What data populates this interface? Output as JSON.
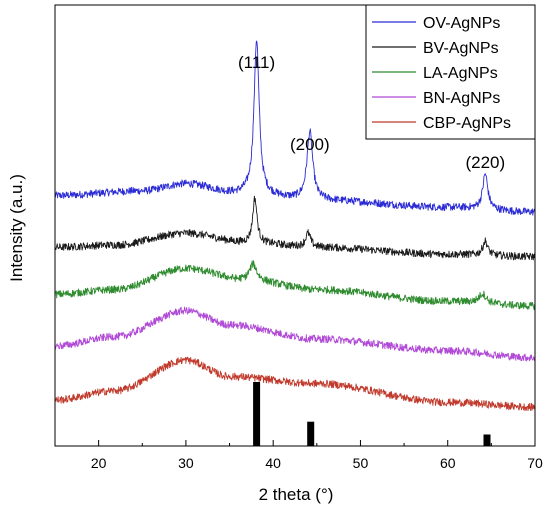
{
  "chart_data": {
    "type": "line",
    "xlabel": "2 theta (°)",
    "ylabel": "Intensity (a.u.)",
    "xlim": [
      15,
      70
    ],
    "xticks": [
      "20",
      "30",
      "40",
      "50",
      "60",
      "70"
    ],
    "y_ticks_shown": false,
    "grid": false,
    "legend_position": "top-right",
    "series": [
      {
        "name": "OV-AgNPs",
        "color": "#2b2bd6",
        "offset": 4.0,
        "baseline": [
          [
            15,
            0.35
          ],
          [
            25,
            0.45
          ],
          [
            30,
            0.6
          ],
          [
            36,
            0.4
          ],
          [
            45,
            0.25
          ],
          [
            60,
            0.1
          ],
          [
            70,
            0.0
          ]
        ],
        "peaks": [
          [
            38.1,
            3.3,
            0.35
          ],
          [
            44.2,
            1.45,
            0.4
          ],
          [
            64.3,
            0.75,
            0.35
          ]
        ]
      },
      {
        "name": "BV-AgNPs",
        "color": "#1a1a1a",
        "offset": 3.0,
        "baseline": [
          [
            15,
            0.25
          ],
          [
            22,
            0.3
          ],
          [
            30,
            0.55
          ],
          [
            37,
            0.35
          ],
          [
            45,
            0.25
          ],
          [
            60,
            0.1
          ],
          [
            70,
            0.05
          ]
        ],
        "peaks": [
          [
            37.9,
            0.95,
            0.3
          ],
          [
            44.0,
            0.3,
            0.35
          ],
          [
            64.3,
            0.3,
            0.35
          ]
        ]
      },
      {
        "name": "LA-AgNPs",
        "color": "#2e8b2e",
        "offset": 2.0,
        "baseline": [
          [
            15,
            0.25
          ],
          [
            22,
            0.35
          ],
          [
            30,
            0.8
          ],
          [
            37,
            0.55
          ],
          [
            45,
            0.35
          ],
          [
            60,
            0.1
          ],
          [
            70,
            0.0
          ]
        ],
        "peaks": [
          [
            37.7,
            0.35,
            0.5
          ],
          [
            64.0,
            0.2,
            0.5
          ]
        ]
      },
      {
        "name": "BN-AgNPs",
        "color": "#b04ad6",
        "offset": 1.0,
        "baseline": [
          [
            15,
            0.15
          ],
          [
            22,
            0.35
          ],
          [
            30,
            0.9
          ],
          [
            35,
            0.6
          ],
          [
            45,
            0.3
          ],
          [
            60,
            0.05
          ],
          [
            70,
            -0.1
          ]
        ],
        "peaks": []
      },
      {
        "name": "CBP-AgNPs",
        "color": "#c0392b",
        "offset": 0.0,
        "baseline": [
          [
            15,
            0.0
          ],
          [
            22,
            0.2
          ],
          [
            30,
            0.85
          ],
          [
            35,
            0.5
          ],
          [
            45,
            0.35
          ],
          [
            60,
            -0.05
          ],
          [
            70,
            -0.15
          ]
        ],
        "peaks": []
      }
    ],
    "reference_bars": [
      {
        "x": 38.1,
        "height": 1.0
      },
      {
        "x": 44.3,
        "height": 0.38
      },
      {
        "x": 64.5,
        "height": 0.18
      }
    ],
    "annotations": [
      {
        "text": "(111)",
        "x": 38.1
      },
      {
        "text": "(200)",
        "x": 44.2
      },
      {
        "text": "(220)",
        "x": 64.3
      }
    ]
  }
}
